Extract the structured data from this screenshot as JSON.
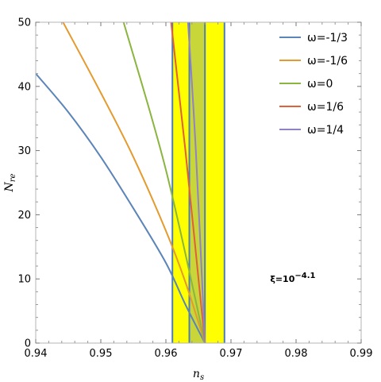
{
  "chart_data": {
    "type": "line",
    "xlabel_main": "n",
    "xlabel_sub": "s",
    "ylabel_main": "N",
    "ylabel_sub": "re",
    "xlim": [
      0.94,
      0.99
    ],
    "ylim": [
      0,
      50
    ],
    "x_ticks": [
      0.94,
      0.95,
      0.96,
      0.97,
      0.98,
      0.99
    ],
    "x_tick_labels": [
      "0.94",
      "0.95",
      "0.96",
      "0.97",
      "0.98",
      "0.99"
    ],
    "y_ticks": [
      0,
      10,
      20,
      30,
      40,
      50
    ],
    "y_tick_labels": [
      "0",
      "10",
      "20",
      "30",
      "40",
      "50"
    ],
    "grid": false,
    "legend_position": "top-right",
    "bands": [
      {
        "x": [
          0.961,
          0.969
        ],
        "fill": "#ffff00",
        "edge": "#4f7db5"
      }
    ],
    "overlap_band": {
      "x": [
        0.9636,
        0.966
      ],
      "fill": "#c8d63a"
    },
    "vertical_lines": [
      0.961,
      0.9636,
      0.966,
      0.969
    ],
    "series": [
      {
        "name": "ω=-1/3",
        "color": "#5b84b8",
        "x": [
          0.94,
          0.945,
          0.95,
          0.955,
          0.96,
          0.963,
          0.966
        ],
        "y": [
          42,
          36,
          29,
          21,
          12.5,
          6,
          0
        ]
      },
      {
        "name": "ω=-1/6",
        "color": "#e59a2e",
        "x": [
          0.9442,
          0.95,
          0.955,
          0.96,
          0.963,
          0.966
        ],
        "y": [
          50,
          39,
          29,
          17.5,
          9.5,
          0
        ]
      },
      {
        "name": "ω=0",
        "color": "#8ab53f",
        "x": [
          0.9535,
          0.96,
          0.966
        ],
        "y": [
          50,
          27,
          0
        ]
      },
      {
        "name": "ω=1/6",
        "color": "#e0603a",
        "x": [
          0.9608,
          0.963,
          0.966
        ],
        "y": [
          50,
          30,
          0
        ]
      },
      {
        "name": "ω=1/4",
        "color": "#8f82c6",
        "x": [
          0.9634,
          0.9646,
          0.966
        ],
        "y": [
          50,
          30,
          0
        ]
      }
    ],
    "annotation": {
      "base": "ξ=10",
      "exponent": "−4.1",
      "x": 0.9795,
      "y": 9.5
    }
  }
}
